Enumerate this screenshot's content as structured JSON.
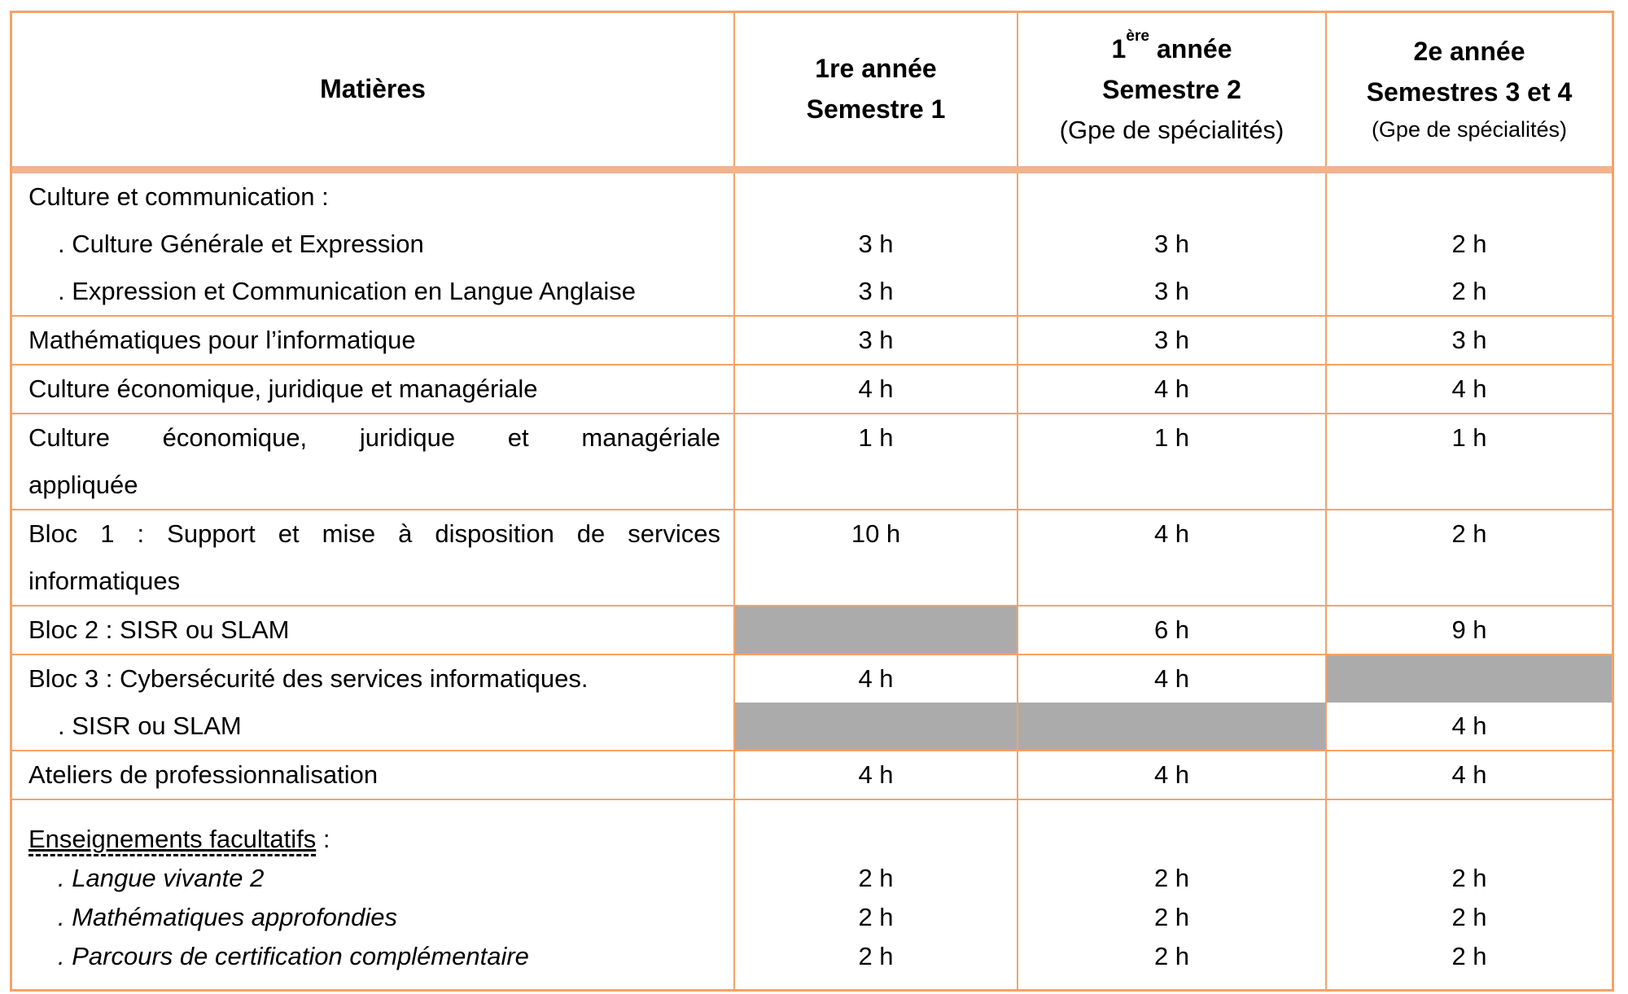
{
  "colors": {
    "border_thin": "#F7A266",
    "border_header_thick": "#F2B28C",
    "blocked_cell_gray": "#ABABAB",
    "text": "#000000",
    "background": "#FFFFFF"
  },
  "header": {
    "c1": "Matières",
    "c2l1": "1re année",
    "c2l2": "Semestre 1",
    "c3l1a": "1",
    "c3l1sup": "ère",
    "c3l1b": " année",
    "c3l2": "Semestre 2",
    "c3l3": "(Gpe de spécialités)",
    "c4l1": "2e année",
    "c4l2": "Semestres 3 et 4",
    "c4l3": "(Gpe de spécialités)"
  },
  "rows": [
    {
      "name": "culture-communication",
      "lines": [
        {
          "t": "Culture et communication :",
          "v": [
            "",
            "",
            ""
          ],
          "gray": [
            false,
            false,
            false
          ]
        },
        {
          "t": ". Culture Générale et Expression",
          "v": [
            "3 h",
            "3 h",
            "2 h"
          ],
          "gray": [
            false,
            false,
            false
          ]
        },
        {
          "t": ". Expression et Communication en Langue Anglaise",
          "v": [
            "3 h",
            "3 h",
            "2 h"
          ],
          "gray": [
            false,
            false,
            false
          ]
        }
      ]
    },
    {
      "name": "mathematiques-informatique",
      "lines": [
        {
          "t": "Mathématiques pour l’informatique",
          "v": [
            "3 h",
            "3 h",
            "3 h"
          ],
          "gray": [
            false,
            false,
            false
          ]
        }
      ]
    },
    {
      "name": "culture-economique-juridique-manageriale",
      "lines": [
        {
          "t": "Culture économique, juridique et managériale",
          "v": [
            "4 h",
            "4 h",
            "4 h"
          ],
          "gray": [
            false,
            false,
            false
          ]
        }
      ]
    },
    {
      "name": "culture-economique-juridique-manageriale-appliquee",
      "lines": [
        {
          "t": "Culture économique, juridique et managériale",
          "v": [
            "1 h",
            "1 h",
            "1 h"
          ],
          "gray": [
            false,
            false,
            false
          ]
        },
        {
          "t": "appliquée",
          "v": [
            "",
            "",
            ""
          ],
          "gray": [
            false,
            false,
            false
          ]
        }
      ]
    },
    {
      "name": "bloc1-support-mise-a-disposition",
      "lines": [
        {
          "t": "Bloc 1 : Support et mise à disposition de services",
          "v": [
            "10 h",
            "4 h",
            "2 h"
          ],
          "gray": [
            false,
            false,
            false
          ]
        },
        {
          "t": "informatiques",
          "v": [
            "",
            "",
            ""
          ],
          "gray": [
            false,
            false,
            false
          ]
        }
      ]
    },
    {
      "name": "bloc2-sisr-ou-slam",
      "lines": [
        {
          "t": "Bloc 2 : SISR ou SLAM",
          "v": [
            "",
            "6 h",
            "9 h"
          ],
          "gray": [
            true,
            false,
            false
          ]
        }
      ]
    },
    {
      "name": "bloc3-cybersecurite",
      "lines": [
        {
          "t": "Bloc 3 : Cybersécurité des services informatiques.",
          "v": [
            "4 h",
            "4 h",
            ""
          ],
          "gray": [
            false,
            false,
            true
          ]
        },
        {
          "t": ". SISR ou SLAM",
          "v": [
            "",
            "",
            "4 h"
          ],
          "gray": [
            true,
            true,
            false
          ]
        }
      ]
    },
    {
      "name": "ateliers-professionnalisation",
      "lines": [
        {
          "t": "Ateliers de professionnalisation",
          "v": [
            "4 h",
            "4 h",
            "4 h"
          ],
          "gray": [
            false,
            false,
            false
          ]
        }
      ]
    },
    {
      "name": "enseignements-facultatifs",
      "suffix": " :",
      "lines": [
        {
          "t": "Enseignements facultatifs",
          "v": [
            "",
            "",
            ""
          ],
          "gray": [
            false,
            false,
            false
          ]
        },
        {
          "t": ". Langue vivante 2",
          "v": [
            "2 h",
            "2 h",
            "2 h"
          ],
          "gray": [
            false,
            false,
            false
          ]
        },
        {
          "t": ". Mathématiques approfondies",
          "v": [
            "2 h",
            "2 h",
            "2 h"
          ],
          "gray": [
            false,
            false,
            false
          ]
        },
        {
          "t": ". Parcours de certification complémentaire",
          "v": [
            "2 h",
            "2 h",
            "2 h"
          ],
          "gray": [
            false,
            false,
            false
          ]
        }
      ]
    }
  ]
}
